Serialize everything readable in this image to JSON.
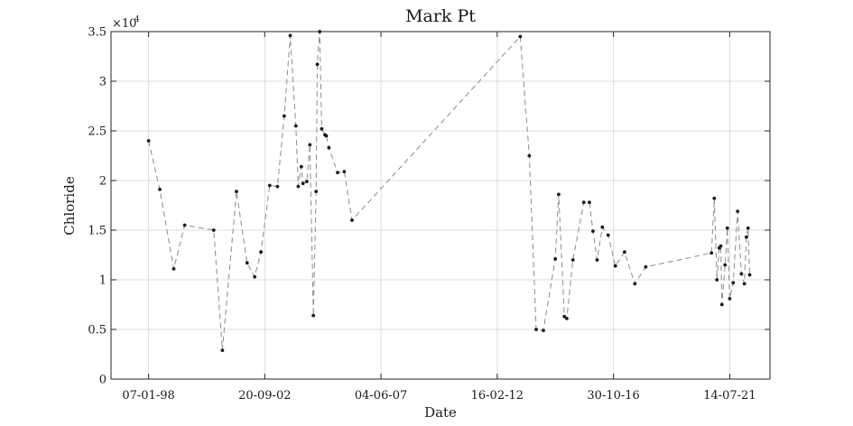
{
  "chart_data": {
    "type": "line",
    "title": "Mark Pt",
    "xlabel": "Date",
    "ylabel": "Chloride",
    "y_exponent_label": "×10",
    "y_exponent_power": "4",
    "xlim": [
      "1996-07-01",
      "2023-03-01"
    ],
    "ylim": [
      0,
      35000
    ],
    "x_ticks": [
      {
        "date": "1998-01-07",
        "label": "07-01-98"
      },
      {
        "date": "2002-09-20",
        "label": "20-09-02"
      },
      {
        "date": "2007-06-04",
        "label": "04-06-07"
      },
      {
        "date": "2012-02-16",
        "label": "16-02-12"
      },
      {
        "date": "2016-10-30",
        "label": "30-10-16"
      },
      {
        "date": "2021-07-14",
        "label": "14-07-21"
      }
    ],
    "y_ticks": [
      {
        "value": 0,
        "label": "0"
      },
      {
        "value": 5000,
        "label": "0.5"
      },
      {
        "value": 10000,
        "label": "1"
      },
      {
        "value": 15000,
        "label": "1.5"
      },
      {
        "value": 20000,
        "label": "2"
      },
      {
        "value": 25000,
        "label": "2.5"
      },
      {
        "value": 30000,
        "label": "3"
      },
      {
        "value": 35000,
        "label": "3.5"
      }
    ],
    "grid": true,
    "line_style": "dashed",
    "colors": {
      "line": "#8c8c8c",
      "marker": "#1a1a1a",
      "grid": "#dcdcdc",
      "axis": "#262626"
    },
    "series": [
      {
        "x": [
          "1998-01-07",
          "1998-06-22",
          "1999-01-14",
          "1999-06-25",
          "2000-08-27",
          "2001-01-02",
          "2001-07-29",
          "2002-01-02",
          "2002-04-24",
          "2002-07-26",
          "2002-12-02",
          "2003-03-27",
          "2003-07-05",
          "2003-10-02",
          "2003-12-24",
          "2004-01-28",
          "2004-03-14",
          "2004-04-07",
          "2004-06-02",
          "2004-07-18",
          "2004-09-08",
          "2004-10-18",
          "2004-11-05",
          "2004-12-10",
          "2005-01-09",
          "2005-02-26",
          "2005-03-18",
          "2005-04-25",
          "2005-09-01",
          "2005-12-08",
          "2006-04-02",
          "2013-01-21",
          "2013-06-04",
          "2013-09-14",
          "2013-12-29",
          "2014-06-23",
          "2014-08-12",
          "2014-11-04",
          "2014-12-10",
          "2015-03-11",
          "2015-08-18",
          "2015-11-09",
          "2016-01-01",
          "2016-03-02",
          "2016-05-19",
          "2016-08-13",
          "2016-11-27",
          "2017-04-12",
          "2017-09-11",
          "2018-02-19",
          "2020-10-17",
          "2020-11-28",
          "2021-01-06",
          "2021-02-10",
          "2021-03-04",
          "2021-03-21",
          "2021-05-06",
          "2021-06-09",
          "2021-07-14",
          "2021-09-04",
          "2021-11-08",
          "2022-01-03",
          "2022-02-16",
          "2022-03-18",
          "2022-04-12",
          "2022-05-05"
        ],
        "values": [
          24000,
          19100,
          11100,
          15500,
          15000,
          2900,
          18900,
          11700,
          10300,
          12800,
          19500,
          19400,
          26500,
          34600,
          25500,
          19400,
          21400,
          19700,
          19900,
          23600,
          6400,
          18900,
          31700,
          35000,
          25200,
          24600,
          24500,
          23300,
          20800,
          20900,
          16000,
          34500,
          22500,
          5000,
          4900,
          12100,
          18600,
          6300,
          6100,
          12000,
          17800,
          17800,
          14900,
          12000,
          15300,
          14500,
          11400,
          12800,
          9600,
          11300,
          12700,
          18200,
          10000,
          13200,
          13400,
          7500,
          11500,
          15200,
          8100,
          9700,
          16900,
          10600,
          9600,
          14300,
          15200,
          10500
        ]
      }
    ]
  }
}
